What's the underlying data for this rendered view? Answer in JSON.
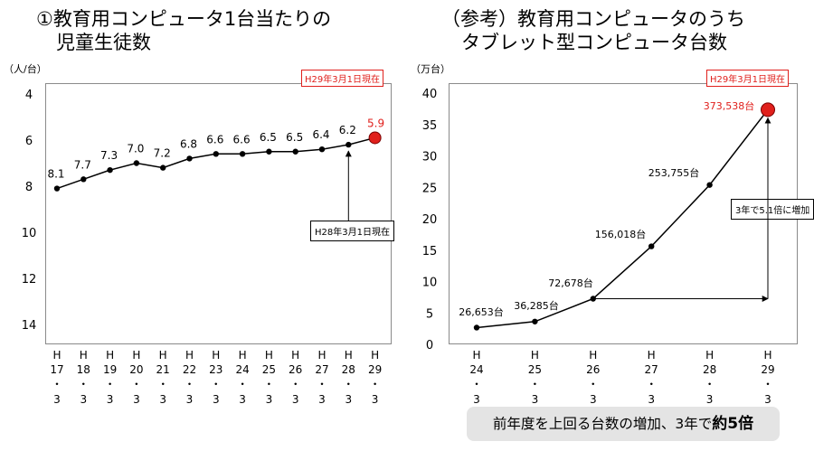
{
  "left": {
    "title_line1": "①教育用コンピュータ1台当たりの",
    "title_line2": "児童生徒数",
    "unit": "（人/台）",
    "as_of": "H29年3月1日現在",
    "callout": "H28年3月1日現在"
  },
  "right": {
    "title_line1": "（参考）教育用コンピュータのうち",
    "title_line2": "タブレット型コンピュータ台数",
    "unit": "（万台）",
    "as_of": "H29年3月1日現在",
    "callout": "3年で5.1倍に増加"
  },
  "summary": {
    "text": "前年度を上回る台数の増加、3年で",
    "emphasis": "約5倍"
  },
  "colors": {
    "highlight": "#e0201c",
    "line": "#000000"
  },
  "chart_data": [
    {
      "type": "line",
      "categories": [
        [
          "H",
          "17",
          "・",
          "3"
        ],
        [
          "H",
          "18",
          "・",
          "3"
        ],
        [
          "H",
          "19",
          "・",
          "3"
        ],
        [
          "H",
          "20",
          "・",
          "3"
        ],
        [
          "H",
          "21",
          "・",
          "3"
        ],
        [
          "H",
          "22",
          "・",
          "3"
        ],
        [
          "H",
          "23",
          "・",
          "3"
        ],
        [
          "H",
          "24",
          "・",
          "3"
        ],
        [
          "H",
          "25",
          "・",
          "3"
        ],
        [
          "H",
          "26",
          "・",
          "3"
        ],
        [
          "H",
          "27",
          "・",
          "3"
        ],
        [
          "H",
          "28",
          "・",
          "3"
        ],
        [
          "H",
          "29",
          "・",
          "3"
        ]
      ],
      "values": [
        8.1,
        7.7,
        7.3,
        7.0,
        7.2,
        6.8,
        6.6,
        6.6,
        6.5,
        6.5,
        6.4,
        6.2,
        5.9
      ],
      "labels": [
        "8.1",
        "7.7",
        "7.3",
        "7.0",
        "7.2",
        "6.8",
        "6.6",
        "6.6",
        "6.5",
        "6.5",
        "6.4",
        "6.2",
        "5.9"
      ],
      "ylabel": "（人/台）",
      "ylim": [
        4,
        15
      ],
      "yticks": [
        4,
        6,
        8,
        10,
        12,
        14
      ],
      "y_inverted": true,
      "highlight_last": true
    },
    {
      "type": "line",
      "categories": [
        [
          "H",
          "24",
          "・",
          "3"
        ],
        [
          "H",
          "25",
          "・",
          "3"
        ],
        [
          "H",
          "26",
          "・",
          "3"
        ],
        [
          "H",
          "27",
          "・",
          "3"
        ],
        [
          "H",
          "28",
          "・",
          "3"
        ],
        [
          "H",
          "29",
          "・",
          "3"
        ]
      ],
      "values": [
        2.6653,
        3.6285,
        7.2678,
        15.6018,
        25.3755,
        37.3538
      ],
      "labels": [
        "26,653台",
        "36,285台",
        "72,678台",
        "156,018台",
        "253,755台",
        "373,538台"
      ],
      "ylabel": "（万台）",
      "ylim": [
        0,
        40
      ],
      "yticks": [
        0,
        5,
        10,
        15,
        20,
        25,
        30,
        35,
        40
      ],
      "highlight_last": true
    }
  ]
}
